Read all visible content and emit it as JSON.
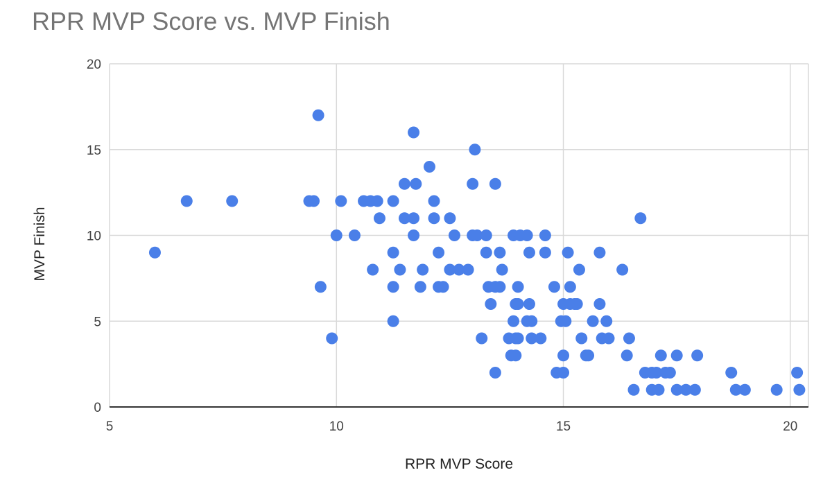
{
  "chart_data": {
    "type": "scatter",
    "title": "RPR MVP Score vs. MVP Finish",
    "xlabel": "RPR MVP Score",
    "ylabel": "MVP Finish",
    "xlim": [
      5,
      20.4
    ],
    "ylim": [
      0,
      20
    ],
    "xticks": [
      5,
      10,
      15,
      20
    ],
    "yticks": [
      0,
      5,
      10,
      15,
      20
    ],
    "grid": true,
    "legend": "none",
    "color": "#4a7fe8",
    "grid_color": "#d9d9d9",
    "axis_color": "#333333",
    "points": [
      [
        6.0,
        9
      ],
      [
        6.7,
        12
      ],
      [
        7.7,
        12
      ],
      [
        9.4,
        12
      ],
      [
        9.5,
        12
      ],
      [
        9.6,
        17
      ],
      [
        9.65,
        7
      ],
      [
        9.9,
        4
      ],
      [
        10.0,
        10
      ],
      [
        10.1,
        12
      ],
      [
        10.4,
        10
      ],
      [
        10.6,
        12
      ],
      [
        10.75,
        12
      ],
      [
        10.8,
        8
      ],
      [
        10.9,
        12
      ],
      [
        10.95,
        11
      ],
      [
        11.25,
        12
      ],
      [
        11.25,
        9
      ],
      [
        11.25,
        7
      ],
      [
        11.25,
        5
      ],
      [
        11.4,
        8
      ],
      [
        11.5,
        13
      ],
      [
        11.5,
        11
      ],
      [
        11.7,
        11
      ],
      [
        11.7,
        10
      ],
      [
        11.7,
        16
      ],
      [
        11.75,
        13
      ],
      [
        11.85,
        7
      ],
      [
        11.9,
        8
      ],
      [
        12.05,
        14
      ],
      [
        12.15,
        12
      ],
      [
        12.15,
        11
      ],
      [
        12.25,
        9
      ],
      [
        12.25,
        7
      ],
      [
        12.35,
        7
      ],
      [
        12.5,
        8
      ],
      [
        12.5,
        11
      ],
      [
        12.6,
        10
      ],
      [
        12.7,
        8
      ],
      [
        12.9,
        8
      ],
      [
        13.0,
        13
      ],
      [
        13.0,
        10
      ],
      [
        13.05,
        15
      ],
      [
        13.1,
        10
      ],
      [
        13.2,
        4
      ],
      [
        13.3,
        10
      ],
      [
        13.3,
        9
      ],
      [
        13.35,
        7
      ],
      [
        13.4,
        6
      ],
      [
        13.5,
        13
      ],
      [
        13.5,
        7
      ],
      [
        13.5,
        2
      ],
      [
        13.6,
        7
      ],
      [
        13.6,
        9
      ],
      [
        13.65,
        8
      ],
      [
        13.8,
        4
      ],
      [
        13.85,
        3
      ],
      [
        13.9,
        10
      ],
      [
        13.9,
        5
      ],
      [
        13.95,
        3
      ],
      [
        13.95,
        6
      ],
      [
        13.95,
        4
      ],
      [
        14.0,
        7
      ],
      [
        14.0,
        6
      ],
      [
        14.0,
        4
      ],
      [
        14.05,
        10
      ],
      [
        14.2,
        10
      ],
      [
        14.2,
        5
      ],
      [
        14.25,
        6
      ],
      [
        14.25,
        9
      ],
      [
        14.3,
        4
      ],
      [
        14.3,
        5
      ],
      [
        14.5,
        4
      ],
      [
        14.6,
        10
      ],
      [
        14.6,
        9
      ],
      [
        14.8,
        7
      ],
      [
        14.85,
        2
      ],
      [
        14.95,
        5
      ],
      [
        15.0,
        6
      ],
      [
        15.0,
        2
      ],
      [
        15.0,
        3
      ],
      [
        15.05,
        5
      ],
      [
        15.1,
        9
      ],
      [
        15.15,
        7
      ],
      [
        15.15,
        6
      ],
      [
        15.25,
        6
      ],
      [
        15.3,
        6
      ],
      [
        15.35,
        8
      ],
      [
        15.4,
        4
      ],
      [
        15.5,
        3
      ],
      [
        15.55,
        3
      ],
      [
        15.65,
        5
      ],
      [
        15.8,
        9
      ],
      [
        15.8,
        6
      ],
      [
        15.85,
        4
      ],
      [
        15.95,
        5
      ],
      [
        16.0,
        4
      ],
      [
        16.3,
        8
      ],
      [
        16.4,
        3
      ],
      [
        16.45,
        4
      ],
      [
        16.55,
        1
      ],
      [
        16.7,
        11
      ],
      [
        16.8,
        2
      ],
      [
        16.95,
        2
      ],
      [
        16.95,
        1
      ],
      [
        17.05,
        2
      ],
      [
        17.1,
        1
      ],
      [
        17.15,
        3
      ],
      [
        17.25,
        2
      ],
      [
        17.35,
        2
      ],
      [
        17.5,
        3
      ],
      [
        17.5,
        1
      ],
      [
        17.7,
        1
      ],
      [
        17.9,
        1
      ],
      [
        17.95,
        3
      ],
      [
        18.7,
        2
      ],
      [
        18.8,
        1
      ],
      [
        19.0,
        1
      ],
      [
        19.7,
        1
      ],
      [
        20.15,
        2
      ],
      [
        20.2,
        1
      ]
    ]
  }
}
